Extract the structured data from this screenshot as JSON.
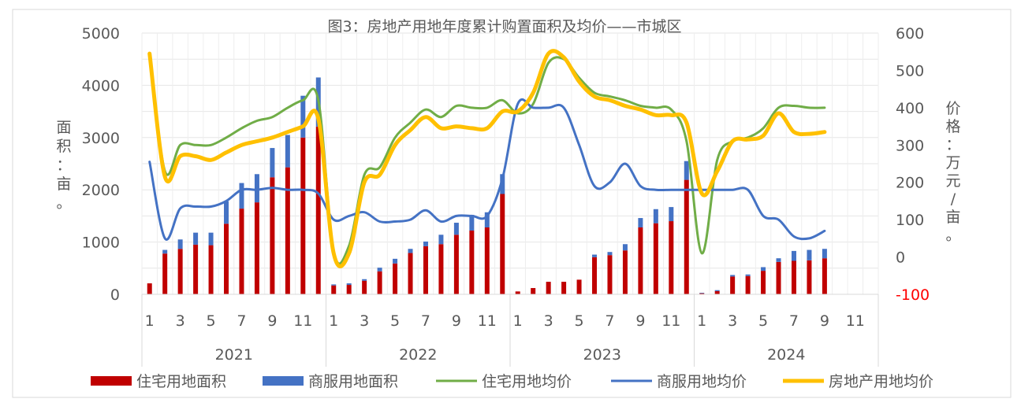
{
  "chart_data": {
    "type": "bar",
    "title": "图3：房地产用地年度累计购置面积及均价——市城区",
    "ylabel": "面积：亩。",
    "y2label": "价格：万元/亩。",
    "ylim": [
      0,
      5000
    ],
    "y2lim": [
      -100,
      600
    ],
    "y_ticks": [
      "0",
      "1000",
      "2000",
      "3000",
      "4000",
      "5000"
    ],
    "y2_ticks": [
      "-100",
      "0",
      "100",
      "200",
      "300",
      "400",
      "500",
      "600"
    ],
    "y2_neg_color": "#ff0000",
    "x_month_labels": [
      "1",
      "3",
      "5",
      "7",
      "9",
      "11"
    ],
    "years": [
      "2021",
      "2022",
      "2023",
      "2024"
    ],
    "months_per_year": 12,
    "series": [
      {
        "name": "住宅用地面积",
        "kind": "stacked-bar",
        "axis": "left",
        "color": "#c00000",
        "values": [
          [
            210,
            780,
            870,
            950,
            940,
            1350,
            1640,
            1760,
            2240,
            2430,
            3000,
            3210
          ],
          [
            170,
            180,
            260,
            440,
            590,
            790,
            920,
            960,
            1140,
            1220,
            1280,
            1920
          ],
          [
            55,
            120,
            240,
            240,
            280,
            710,
            750,
            840,
            1280,
            1360,
            1400,
            2190
          ],
          [
            20,
            60,
            340,
            350,
            450,
            620,
            640,
            650,
            690,
            null,
            null,
            null
          ]
        ]
      },
      {
        "name": "商服用地面积",
        "kind": "stacked-bar",
        "axis": "left",
        "color": "#4472c4",
        "values": [
          [
            0,
            70,
            180,
            230,
            240,
            430,
            490,
            540,
            560,
            620,
            800,
            940
          ],
          [
            20,
            30,
            30,
            70,
            90,
            80,
            90,
            180,
            230,
            300,
            290,
            380
          ],
          [
            0,
            0,
            0,
            0,
            0,
            50,
            60,
            120,
            180,
            270,
            270,
            360
          ],
          [
            10,
            20,
            30,
            30,
            70,
            70,
            190,
            200,
            180,
            null,
            null,
            null
          ]
        ]
      },
      {
        "name": "住宅用地均价",
        "kind": "line",
        "axis": "right",
        "color": "#70ad47",
        "values": [
          [
            545,
            230,
            300,
            300,
            300,
            320,
            345,
            365,
            375,
            400,
            420,
            420
          ],
          [
            15,
            30,
            220,
            240,
            320,
            360,
            395,
            375,
            405,
            400,
            400,
            420
          ],
          [
            385,
            410,
            520,
            530,
            480,
            440,
            430,
            420,
            405,
            400,
            395,
            310
          ],
          [
            10,
            260,
            310,
            320,
            345,
            400,
            405,
            400,
            400,
            null,
            null,
            null
          ]
        ]
      },
      {
        "name": "商服用地均价",
        "kind": "line",
        "axis": "right",
        "color": "#4472c4",
        "values": [
          [
            255,
            50,
            130,
            135,
            135,
            150,
            180,
            180,
            185,
            180,
            180,
            170
          ],
          [
            100,
            110,
            120,
            95,
            95,
            100,
            125,
            95,
            110,
            110,
            110,
            210
          ],
          [
            410,
            400,
            400,
            400,
            300,
            190,
            200,
            250,
            190,
            180,
            180,
            180
          ],
          [
            180,
            180,
            180,
            180,
            110,
            100,
            55,
            50,
            70,
            null,
            null,
            null
          ]
        ]
      },
      {
        "name": "房地产用地均价",
        "kind": "line",
        "axis": "right",
        "color": "#ffc000",
        "values": [
          [
            545,
            215,
            270,
            270,
            260,
            280,
            300,
            310,
            320,
            335,
            350,
            370
          ],
          [
            10,
            10,
            200,
            220,
            300,
            340,
            375,
            345,
            350,
            345,
            345,
            390
          ],
          [
            390,
            440,
            545,
            535,
            470,
            430,
            420,
            405,
            395,
            380,
            380,
            360
          ],
          [
            170,
            230,
            310,
            315,
            325,
            385,
            335,
            330,
            335,
            null,
            null,
            null
          ]
        ]
      }
    ],
    "legend": {
      "position": "bottom"
    },
    "grid": true
  }
}
